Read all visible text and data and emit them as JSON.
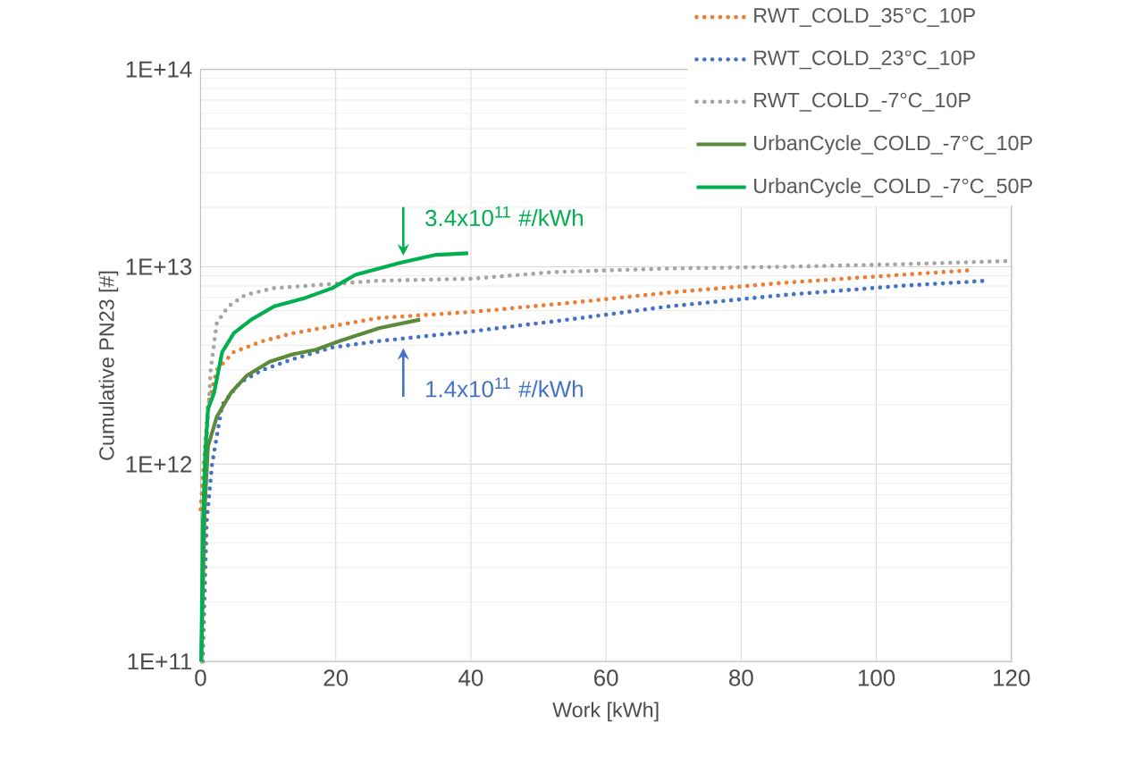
{
  "chart_data": {
    "type": "line",
    "xlabel": "Work [kWh]",
    "ylabel": "Cumulative PN23 [#]",
    "log": "y",
    "grid": true,
    "legend": "top right",
    "marker": "none",
    "xlim": [
      0,
      120
    ],
    "xticks": [
      0,
      20,
      40,
      60,
      80,
      100,
      120
    ],
    "ylim": [
      100000000000.0,
      100000000000000.0
    ],
    "yticks": [
      {
        "value": 100000000000.0,
        "label": "1E+11"
      },
      {
        "value": 1000000000000.0,
        "label": "1E+12"
      },
      {
        "value": 10000000000000.0,
        "label": "1E+13"
      },
      {
        "value": 100000000000000.0,
        "label": "1E+14"
      }
    ],
    "annotations": [
      {
        "text": "3.4x10$^{11}$ #/kWh",
        "x": 30,
        "y": 10500000000000.0
      },
      {
        "text": "1.4x10$^{11}$ #/kWh",
        "x": 30,
        "y": 4200000000000.0
      }
    ],
    "series": [
      {
        "name": "RWT_COLD_35°C_10P",
        "color": "#ed7d31",
        "line_style": "dotted",
        "x": [
          0,
          1.1,
          2.4,
          4.9,
          9.2,
          13.6,
          19.5,
          26.3,
          40,
          55.4,
          69.3,
          86.4,
          103.6,
          113.9
        ],
        "values": [
          590000000000.0,
          2000000000000.0,
          3000000000000.0,
          3700000000000.0,
          4200000000000.0,
          4600000000000.0,
          5000000000000.0,
          5500000000000.0,
          5900000000000.0,
          6600000000000.0,
          7400000000000.0,
          8300000000000.0,
          9100000000000.0,
          9600000000000.0
        ]
      },
      {
        "name": "RWT_COLD_23°C_10P",
        "color": "#4472c4",
        "line_style": "dotted",
        "x": [
          0.3,
          0.9,
          1.7,
          3.2,
          5.9,
          9.2,
          13.6,
          19.5,
          26.3,
          40,
          56.3,
          69.3,
          86.4,
          103.6,
          116.4
        ],
        "values": [
          100000000000.0,
          510000000000.0,
          1000000000000.0,
          2000000000000.0,
          2600000000000.0,
          3000000000000.0,
          3400000000000.0,
          3900000000000.0,
          4200000000000.0,
          4700000000000.0,
          5500000000000.0,
          6300000000000.0,
          7200000000000.0,
          8000000000000.0,
          8500000000000.0
        ]
      },
      {
        "name": "RWT_COLD_-7°C_10P",
        "color": "#a5a5a5",
        "line_style": "dotted",
        "x": [
          0.2,
          0.7,
          1.5,
          2.4,
          4.1,
          6.6,
          10.9,
          17.8,
          26.3,
          40.2,
          52.2,
          69.3,
          86.4,
          103.6,
          119.8
        ],
        "values": [
          100000000000.0,
          1000000000000.0,
          3000000000000.0,
          5200000000000.0,
          6300000000000.0,
          7200000000000.0,
          7800000000000.0,
          8100000000000.0,
          8500000000000.0,
          8700000000000.0,
          9400000000000.0,
          9800000000000.0,
          10000000000000.0,
          10300000000000.0,
          10700000000000.0
        ]
      },
      {
        "name": "UrbanCycle_COLD_-7°C_10P",
        "color": "#5b8a3a",
        "line_style": "solid",
        "x": [
          0.1,
          0.6,
          1.1,
          2.4,
          4.5,
          6.8,
          10.2,
          13.6,
          17.1,
          20.5,
          26.5,
          32.5
        ],
        "values": [
          100000000000.0,
          590000000000.0,
          1230000000000.0,
          1740000000000.0,
          2300000000000.0,
          2800000000000.0,
          3300000000000.0,
          3600000000000.0,
          3800000000000.0,
          4200000000000.0,
          4900000000000.0,
          5400000000000.0
        ]
      },
      {
        "name": "UrbanCycle_COLD_-7°C_50P",
        "color": "#00b050",
        "line_style": "solid",
        "x": [
          0.1,
          0.35,
          0.7,
          1.1,
          2.0,
          3.2,
          4.9,
          7.5,
          10.9,
          15.2,
          19.5,
          22.9,
          29.7,
          34.9,
          39.6
        ],
        "values": [
          100000000000.0,
          510000000000.0,
          1150000000000.0,
          1900000000000.0,
          2300000000000.0,
          3700000000000.0,
          4600000000000.0,
          5400000000000.0,
          6300000000000.0,
          6900000000000.0,
          7800000000000.0,
          9100000000000.0,
          10500000000000.0,
          11500000000000.0,
          11700000000000.0
        ]
      }
    ]
  }
}
